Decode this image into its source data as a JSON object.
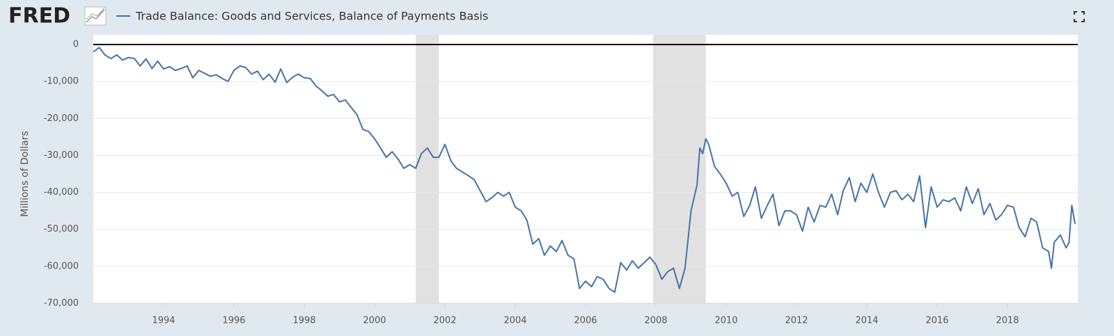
{
  "logo": "FRED",
  "chart_data": {
    "type": "line",
    "title": "Trade Balance: Goods and Services, Balance of Payments Basis",
    "ylabel": "Millions of Dollars",
    "x": [
      1992,
      1992.17,
      1992.33,
      1992.5,
      1992.67,
      1992.83,
      1993,
      1993.17,
      1993.33,
      1993.5,
      1993.67,
      1993.83,
      1994,
      1994.17,
      1994.33,
      1994.5,
      1994.67,
      1994.83,
      1995,
      1995.17,
      1995.33,
      1995.5,
      1995.67,
      1995.83,
      1996,
      1996.17,
      1996.33,
      1996.5,
      1996.67,
      1996.83,
      1997,
      1997.17,
      1997.33,
      1997.5,
      1997.67,
      1997.83,
      1998,
      1998.17,
      1998.33,
      1998.5,
      1998.67,
      1998.83,
      1999,
      1999.17,
      1999.33,
      1999.5,
      1999.67,
      1999.83,
      2000,
      2000.17,
      2000.33,
      2000.5,
      2000.67,
      2000.83,
      2001,
      2001.17,
      2001.33,
      2001.5,
      2001.67,
      2001.83,
      2002,
      2002.17,
      2002.33,
      2002.5,
      2002.67,
      2002.83,
      2003,
      2003.17,
      2003.33,
      2003.5,
      2003.67,
      2003.83,
      2004,
      2004.17,
      2004.33,
      2004.5,
      2004.67,
      2004.83,
      2005,
      2005.17,
      2005.33,
      2005.5,
      2005.67,
      2005.83,
      2006,
      2006.17,
      2006.33,
      2006.5,
      2006.67,
      2006.83,
      2007,
      2007.17,
      2007.33,
      2007.5,
      2007.67,
      2007.83,
      2008,
      2008.17,
      2008.33,
      2008.5,
      2008.67,
      2008.83,
      2009,
      2009.17,
      2009.25,
      2009.33,
      2009.42,
      2009.5,
      2009.67,
      2009.83,
      2010,
      2010.17,
      2010.33,
      2010.5,
      2010.67,
      2010.83,
      2011,
      2011.17,
      2011.33,
      2011.5,
      2011.67,
      2011.83,
      2012,
      2012.17,
      2012.33,
      2012.5,
      2012.67,
      2012.83,
      2013,
      2013.17,
      2013.33,
      2013.5,
      2013.67,
      2013.83,
      2014,
      2014.17,
      2014.33,
      2014.5,
      2014.67,
      2014.83,
      2015,
      2015.17,
      2015.33,
      2015.5,
      2015.67,
      2015.83,
      2016,
      2016.17,
      2016.33,
      2016.5,
      2016.67,
      2016.83,
      2017,
      2017.17,
      2017.33,
      2017.5,
      2017.67,
      2017.83,
      2018,
      2018.17,
      2018.33,
      2018.5,
      2018.67,
      2018.83,
      2019,
      2019.17,
      2019.25,
      2019.33,
      2019.5,
      2019.67,
      2019.75,
      2019.83,
      2019.92
    ],
    "series": [
      {
        "name": "Trade Balance: Goods and Services, Balance of Payments Basis",
        "color": "#4572a7",
        "values": [
          -2000,
          -800,
          -2800,
          -3800,
          -2800,
          -4200,
          -3500,
          -3800,
          -5800,
          -3900,
          -6500,
          -4500,
          -6600,
          -6000,
          -7000,
          -6500,
          -5800,
          -9000,
          -7000,
          -7800,
          -8600,
          -8200,
          -9200,
          -10000,
          -7000,
          -5800,
          -6200,
          -8000,
          -7200,
          -9500,
          -8000,
          -10200,
          -6600,
          -10300,
          -8800,
          -8000,
          -9000,
          -9200,
          -11200,
          -12500,
          -14000,
          -13500,
          -15500,
          -15000,
          -17000,
          -19000,
          -23000,
          -23500,
          -25500,
          -28000,
          -30500,
          -29000,
          -31000,
          -33500,
          -32500,
          -33500,
          -29500,
          -28000,
          -30500,
          -30500,
          -27000,
          -31500,
          -33500,
          -34500,
          -35500,
          -36500,
          -39500,
          -42500,
          -41500,
          -40000,
          -41000,
          -40000,
          -44000,
          -45000,
          -47500,
          -54000,
          -52500,
          -57000,
          -54500,
          -56000,
          -53000,
          -57000,
          -58000,
          -66000,
          -64000,
          -65500,
          -62800,
          -63500,
          -66000,
          -67000,
          -59000,
          -61000,
          -58500,
          -60500,
          -59000,
          -57500,
          -59500,
          -63500,
          -61500,
          -60500,
          -66000,
          -60500,
          -45000,
          -38000,
          -28000,
          -29500,
          -25500,
          -27000,
          -33000,
          -35000,
          -37500,
          -41000,
          -40000,
          -46500,
          -43500,
          -38500,
          -47000,
          -43500,
          -40500,
          -49000,
          -45000,
          -45000,
          -46000,
          -50500,
          -44000,
          -48000,
          -43500,
          -44000,
          -40500,
          -46000,
          -39500,
          -36000,
          -42500,
          -37500,
          -40000,
          -35000,
          -40000,
          -44000,
          -40000,
          -39500,
          -42000,
          -40500,
          -42500,
          -35500,
          -49500,
          -38500,
          -44000,
          -42000,
          -42500,
          -41500,
          -45000,
          -38500,
          -43000,
          -39000,
          -46000,
          -43000,
          -47500,
          -46000,
          -43500,
          -44000,
          -49500,
          -52000,
          -47000,
          -48000,
          -55000,
          -56000,
          -60500,
          -53500,
          -51500,
          -55000,
          -53500,
          -43500,
          -48500
        ]
      }
    ],
    "recessions": [
      [
        2001.17,
        2001.83
      ],
      [
        2007.92,
        2009.42
      ]
    ],
    "xlim": [
      1992,
      2020
    ],
    "xticks": [
      1994,
      1996,
      1998,
      2000,
      2002,
      2004,
      2006,
      2008,
      2010,
      2012,
      2014,
      2016,
      2018
    ],
    "ylim": [
      -70000,
      0
    ],
    "yticks": [
      {
        "value": -70000,
        "label": "-70,000"
      },
      {
        "value": -60000,
        "label": "-60,000"
      },
      {
        "value": -50000,
        "label": "-50,000"
      },
      {
        "value": -40000,
        "label": "-40,000"
      },
      {
        "value": -30000,
        "label": "-30,000"
      },
      {
        "value": -20000,
        "label": "-20,000"
      },
      {
        "value": -10000,
        "label": "-10,000"
      },
      0
    ],
    "grid": true
  }
}
